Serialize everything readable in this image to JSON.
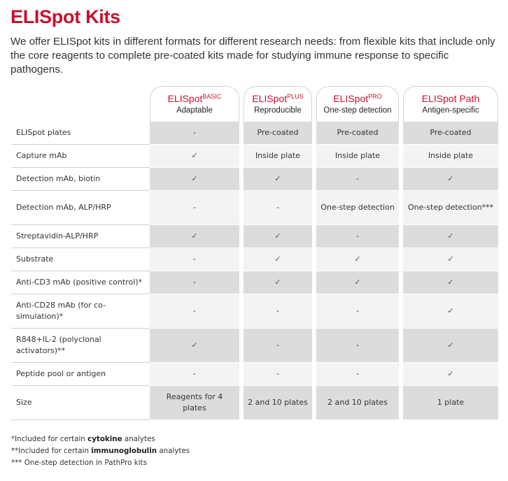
{
  "page": {
    "title": "ELISpot Kits",
    "intro": "We offer ELISpot kits in different formats for different research needs: from flexible kits that include only the core reagents to complete pre-coated kits made for studying immune response to specific pathogens."
  },
  "table": {
    "columns": [
      {
        "name": "ELISpot",
        "superscript": "BASIC",
        "subtitle": "Adaptable"
      },
      {
        "name": "ELISpot",
        "superscript": "PLUS",
        "subtitle": "Reproducible"
      },
      {
        "name": "ELISpot",
        "superscript": "PRO",
        "subtitle": "One-step detection"
      },
      {
        "name": "ELISpot Path",
        "superscript": "",
        "subtitle": "Antigen-specific"
      }
    ],
    "rows": [
      {
        "label": "ELISpot plates",
        "values": [
          "-",
          "Pre-coated",
          "Pre-coated",
          "Pre-coated"
        ]
      },
      {
        "label": "Capture mAb",
        "values": [
          "✓",
          "Inside plate",
          "Inside plate",
          "Inside plate"
        ]
      },
      {
        "label": "Detection mAb, biotin",
        "values": [
          "✓",
          "✓",
          "-",
          "✓"
        ]
      },
      {
        "label": "Detection mAb, ALP/HRP",
        "values": [
          "-",
          "-",
          "One-step detection",
          "One-step detection***"
        ]
      },
      {
        "label": "Streptavidin-ALP/HRP",
        "values": [
          "✓",
          "✓",
          "-",
          "✓"
        ]
      },
      {
        "label": "Substrate",
        "values": [
          "-",
          "✓",
          "✓",
          "✓"
        ]
      },
      {
        "label": "Anti-CD3 mAb (positive control)*",
        "values": [
          "-",
          "✓",
          "✓",
          "✓"
        ]
      },
      {
        "label": "Anti-CD28 mAb (for co-simulation)*",
        "values": [
          "-",
          "-",
          "-",
          "✓"
        ]
      },
      {
        "label": "R848+IL-2 (polyclonal activators)**",
        "values": [
          "✓",
          "-",
          "-",
          "✓"
        ]
      },
      {
        "label": "Peptide pool or antigen",
        "values": [
          "-",
          "-",
          "-",
          "✓"
        ]
      },
      {
        "label": "Size",
        "values": [
          "Reagents for 4 plates",
          "2 and 10 plates",
          "2 and 10 plates",
          "1 plate"
        ]
      }
    ]
  },
  "footnotes": [
    {
      "prefix": "*Included for certain ",
      "bold": "cytokine",
      "suffix": " analytes"
    },
    {
      "prefix": "**Included for certain ",
      "bold": "immunoglobulin",
      "suffix": " analytes"
    },
    {
      "prefix": "*** One-step detection in PathPro kits",
      "bold": "",
      "suffix": ""
    }
  ],
  "colors": {
    "accent": "#c8102e",
    "row_dark": "#dcdcdc",
    "row_light": "#f3f3f3"
  }
}
